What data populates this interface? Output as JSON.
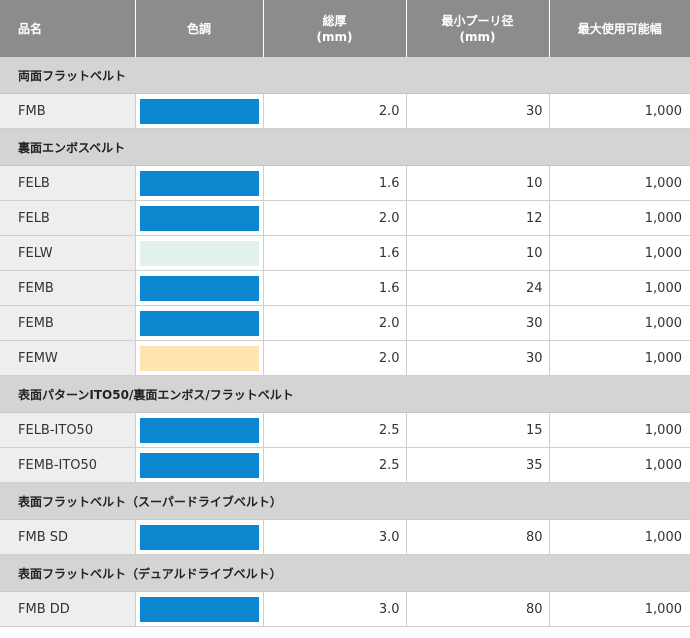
{
  "header": {
    "col_name": "品名",
    "col_color": "色調",
    "col_thickness": [
      "総厚",
      "(mm)"
    ],
    "col_pulley": [
      "最小プーリ径",
      "(mm)"
    ],
    "col_width": "最大使用可能幅"
  },
  "sections": [
    {
      "title": "両面フラットベルト",
      "rows": [
        {
          "name": "FMB",
          "color": "#0b87cf",
          "thickness": "2.0",
          "pulley": "30",
          "width": "1,000"
        }
      ]
    },
    {
      "title": "裏面エンボスベルト",
      "rows": [
        {
          "name": "FELB",
          "color": "#0b87cf",
          "thickness": "1.6",
          "pulley": "10",
          "width": "1,000"
        },
        {
          "name": "FELB",
          "color": "#0b87cf",
          "thickness": "2.0",
          "pulley": "12",
          "width": "1,000"
        },
        {
          "name": "FELW",
          "color": "#e3f1ec",
          "thickness": "1.6",
          "pulley": "10",
          "width": "1,000"
        },
        {
          "name": "FEMB",
          "color": "#0b87cf",
          "thickness": "1.6",
          "pulley": "24",
          "width": "1,000"
        },
        {
          "name": "FEMB",
          "color": "#0b87cf",
          "thickness": "2.0",
          "pulley": "30",
          "width": "1,000"
        },
        {
          "name": "FEMW",
          "color": "#ffe4b0",
          "thickness": "2.0",
          "pulley": "30",
          "width": "1,000"
        }
      ]
    },
    {
      "title": "表面パターンITO50/裏面エンボス/フラットベルト",
      "rows": [
        {
          "name": "FELB-ITO50",
          "color": "#0b87cf",
          "thickness": "2.5",
          "pulley": "15",
          "width": "1,000"
        },
        {
          "name": "FEMB-ITO50",
          "color": "#0b87cf",
          "thickness": "2.5",
          "pulley": "35",
          "width": "1,000"
        }
      ]
    },
    {
      "title": "表面フラットベルト（スーパードライブベルト）",
      "rows": [
        {
          "name": "FMB SD",
          "color": "#0b87cf",
          "thickness": "3.0",
          "pulley": "80",
          "width": "1,000"
        }
      ]
    },
    {
      "title": "表面フラットベルト（デュアルドライブベルト）",
      "rows": [
        {
          "name": "FMB DD",
          "color": "#0b87cf",
          "thickness": "3.0",
          "pulley": "80",
          "width": "1,000"
        }
      ]
    }
  ]
}
